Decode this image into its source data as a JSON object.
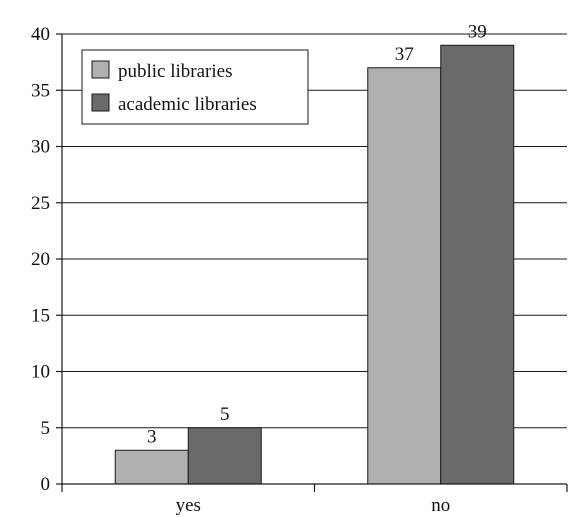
{
  "chart_data": {
    "type": "bar",
    "categories": [
      "yes",
      "no"
    ],
    "series": [
      {
        "name": "public libraries",
        "values": [
          3,
          37
        ],
        "color": "#b0b0b0"
      },
      {
        "name": "academic libraries",
        "values": [
          5,
          39
        ],
        "color": "#6a6a6a"
      }
    ],
    "title": "",
    "xlabel": "",
    "ylabel": "",
    "ylim": [
      0,
      40
    ],
    "yticks": [
      0,
      5,
      10,
      15,
      20,
      25,
      30,
      35,
      40
    ],
    "grid": true,
    "data_labels": true,
    "legend_position": "top-left"
  }
}
